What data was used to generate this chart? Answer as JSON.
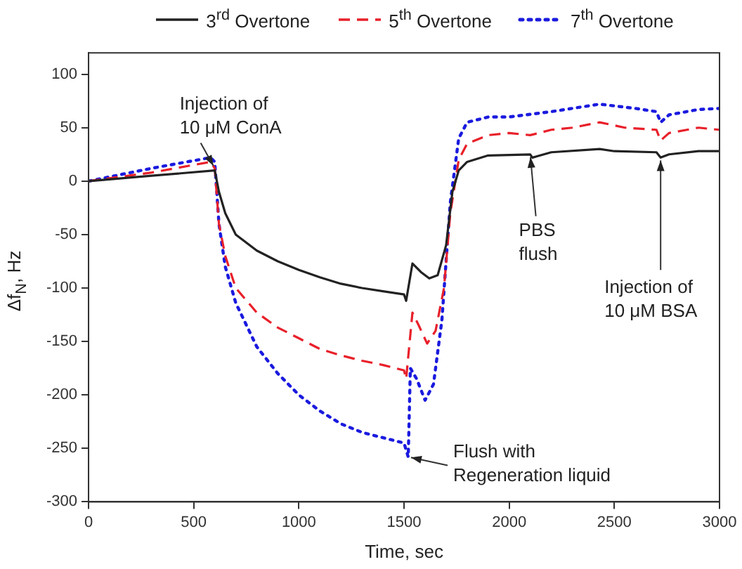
{
  "chart_data": {
    "type": "line",
    "xlabel": "Time, sec",
    "ylabel": "Δf$_{N}$, Hz",
    "xlim": [
      0,
      3000
    ],
    "ylim": [
      -300,
      120
    ],
    "xticks": [
      0,
      500,
      1000,
      1500,
      2000,
      2500,
      3000
    ],
    "yticks": [
      -300,
      -250,
      -200,
      -150,
      -100,
      -50,
      0,
      50,
      100
    ],
    "grid": false,
    "legend": "top",
    "marker": "none",
    "series": [
      {
        "name": "3$^{rd}$ Overtone",
        "color": "#222222",
        "line_style": "solid",
        "x": [
          0,
          300,
          600,
          620,
          650,
          700,
          800,
          900,
          1000,
          1100,
          1200,
          1300,
          1400,
          1500,
          1510,
          1540,
          1580,
          1620,
          1660,
          1700,
          1730,
          1760,
          1800,
          1900,
          2100,
          2110,
          2200,
          2430,
          2500,
          2700,
          2720,
          2760,
          2900,
          3000
        ],
        "values": [
          0,
          5,
          10,
          -10,
          -30,
          -50,
          -65,
          -75,
          -83,
          -90,
          -96,
          -100,
          -103,
          -106,
          -112,
          -77,
          -85,
          -91,
          -88,
          -60,
          -10,
          10,
          18,
          24,
          25,
          22,
          27,
          30,
          28,
          27,
          22,
          25,
          28,
          28
        ]
      },
      {
        "name": "5$^{th}$ Overtone",
        "color": "#e8202a",
        "line_style": "dashed",
        "x": [
          0,
          300,
          580,
          600,
          620,
          650,
          700,
          800,
          900,
          1000,
          1100,
          1200,
          1300,
          1400,
          1500,
          1510,
          1540,
          1570,
          1610,
          1650,
          1690,
          1720,
          1760,
          1800,
          1900,
          2000,
          2100,
          2200,
          2300,
          2430,
          2550,
          2700,
          2720,
          2760,
          2900,
          3000
        ],
        "values": [
          0,
          8,
          18,
          12,
          -40,
          -70,
          -100,
          -123,
          -137,
          -147,
          -157,
          -163,
          -168,
          -172,
          -177,
          -185,
          -123,
          -135,
          -152,
          -140,
          -100,
          -30,
          20,
          35,
          43,
          45,
          43,
          48,
          50,
          55,
          50,
          48,
          38,
          45,
          50,
          48
        ]
      },
      {
        "name": "7$^{th}$ Overtone",
        "color": "#1a1adf",
        "line_style": "dotted",
        "x": [
          0,
          300,
          580,
          600,
          620,
          650,
          700,
          800,
          900,
          1000,
          1100,
          1200,
          1300,
          1400,
          1500,
          1520,
          1530,
          1560,
          1600,
          1640,
          1680,
          1720,
          1760,
          1800,
          1900,
          2000,
          2200,
          2430,
          2600,
          2700,
          2720,
          2760,
          2900,
          3000
        ],
        "values": [
          0,
          12,
          22,
          18,
          -40,
          -80,
          -114,
          -155,
          -180,
          -200,
          -215,
          -227,
          -235,
          -240,
          -245,
          -258,
          -175,
          -185,
          -205,
          -190,
          -130,
          -20,
          40,
          55,
          60,
          60,
          65,
          72,
          68,
          65,
          55,
          62,
          67,
          68
        ]
      }
    ],
    "annotations": [
      {
        "text": "Injection of\n10 μM ConA",
        "x": 600,
        "y": 12
      },
      {
        "text": "Flush with\nRegeneration liquid",
        "x": 1520,
        "y": -258
      },
      {
        "text": "PBS\nflush",
        "x": 2100,
        "y": 25
      },
      {
        "text": "Injection of\n10 μM BSA",
        "x": 2720,
        "y": 22
      }
    ]
  }
}
